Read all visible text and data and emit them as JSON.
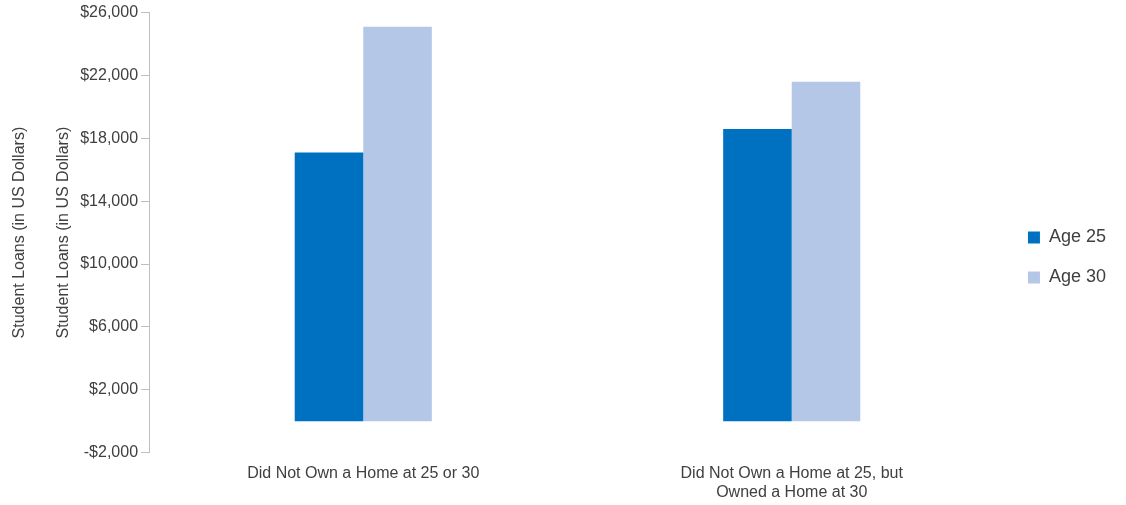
{
  "chart_data": {
    "type": "bar",
    "ylabel": "Student Loans (in US Dollars)",
    "annotations": [
      "Student Loans (in US Dollars)"
    ],
    "categories": [
      "Did Not Own a Home at 25 or 30",
      "Did Not Own a Home at 25, but Owned a Home at 30"
    ],
    "series": [
      {
        "name": "Age 25",
        "color": "#0070c0",
        "values": [
          17100,
          18600
        ]
      },
      {
        "name": "Age 30",
        "color": "#b4c7e7",
        "values": [
          25100,
          21600
        ]
      }
    ],
    "ylim": [
      -2000,
      26000
    ],
    "yticks": [
      {
        "value": -2000,
        "label": "-$2,000"
      },
      {
        "value": 2000,
        "label": "$2,000"
      },
      {
        "value": 6000,
        "label": "$6,000"
      },
      {
        "value": 10000,
        "label": "$10,000"
      },
      {
        "value": 14000,
        "label": "$14,000"
      },
      {
        "value": 18000,
        "label": "$18,000"
      },
      {
        "value": 22000,
        "label": "$22,000"
      },
      {
        "value": 26000,
        "label": "$26,000"
      }
    ],
    "grid": false,
    "legend": "right"
  }
}
